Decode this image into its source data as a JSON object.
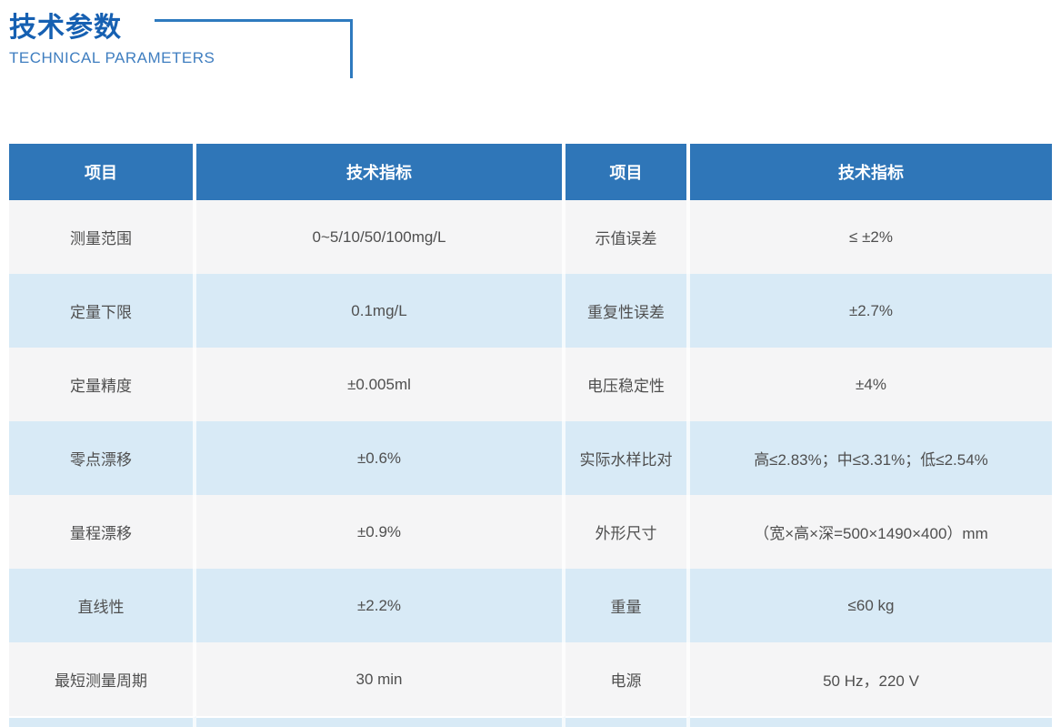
{
  "header": {
    "title_zh": "技术参数",
    "title_en": "TECHNICAL PARAMETERS"
  },
  "colors": {
    "accent_blue": "#2f76b8",
    "title_blue": "#1660b2",
    "subtitle_blue": "#3f7ec0",
    "bracket_blue": "#2e7abf",
    "row_gray": "#f5f5f6",
    "row_light_blue": "#d8eaf6",
    "header_text": "#ffffff",
    "body_text": "#4f4f4f"
  },
  "table": {
    "columns": {
      "col1": "项目",
      "col2": "技术指标",
      "col3": "项目",
      "col4": "技术指标"
    },
    "rows": [
      {
        "item_left": "测量范围",
        "value_left": "0~5/10/50/100mg/L",
        "item_right": "示值误差",
        "value_right": "≤ ±2%"
      },
      {
        "item_left": "定量下限",
        "value_left": "0.1mg/L",
        "item_right": "重复性误差",
        "value_right": "±2.7%"
      },
      {
        "item_left": "定量精度",
        "value_left": "±0.005ml",
        "item_right": "电压稳定性",
        "value_right": "±4%"
      },
      {
        "item_left": "零点漂移",
        "value_left": "±0.6%",
        "item_right": "实际水样比对",
        "value_right": "高≤2.83%；中≤3.31%；低≤2.54%"
      },
      {
        "item_left": "量程漂移",
        "value_left": "±0.9%",
        "item_right": "外形尺寸",
        "value_right": "（宽×高×深=500×1490×400）mm"
      },
      {
        "item_left": "直线性",
        "value_left": "±2.2%",
        "item_right": "重量",
        "value_right": "≤60 kg"
      },
      {
        "item_left": "最短测量周期",
        "value_left": "30 min",
        "item_right": "电源",
        "value_right": "50 Hz，220 V"
      }
    ]
  }
}
